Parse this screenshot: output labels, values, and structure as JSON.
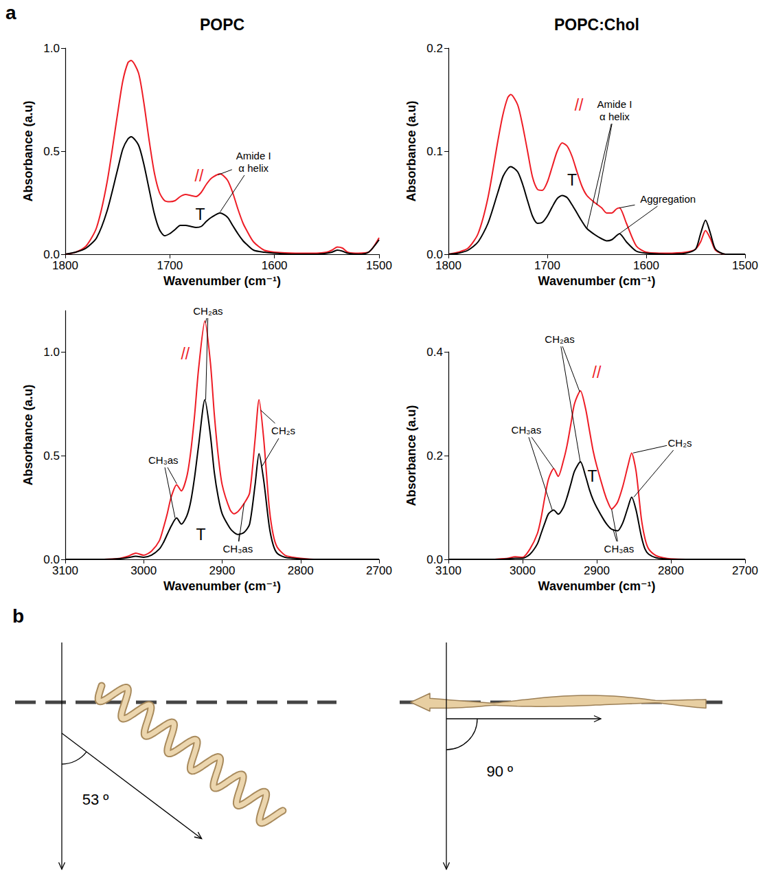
{
  "panel_a_letter": "a",
  "chart_data": [
    {
      "type": "line",
      "title": "POPC",
      "x_label": "Wavenumber (cm⁻¹)",
      "y_label": "Absorbance (a.u)",
      "x": [
        1800,
        1790,
        1780,
        1770,
        1760,
        1750,
        1745,
        1740,
        1737,
        1730,
        1725,
        1720,
        1715,
        1710,
        1705,
        1700,
        1695,
        1690,
        1685,
        1680,
        1675,
        1670,
        1665,
        1660,
        1652,
        1645,
        1640,
        1635,
        1630,
        1627,
        1620,
        1610,
        1600,
        1580,
        1560,
        1550,
        1545,
        1540,
        1535,
        1530,
        1520,
        1510,
        1500
      ],
      "series": [
        {
          "name": "//",
          "color": "#ee1c25",
          "label_at": [
            1672,
            0.38
          ],
          "values": [
            0,
            0.01,
            0.04,
            0.13,
            0.35,
            0.68,
            0.84,
            0.93,
            0.94,
            0.88,
            0.74,
            0.56,
            0.4,
            0.3,
            0.26,
            0.255,
            0.26,
            0.28,
            0.29,
            0.285,
            0.28,
            0.3,
            0.34,
            0.37,
            0.39,
            0.36,
            0.3,
            0.22,
            0.15,
            0.12,
            0.06,
            0.02,
            0.01,
            0.005,
            0.005,
            0.01,
            0.02,
            0.035,
            0.03,
            0.01,
            0.005,
            0.01,
            0.08
          ]
        },
        {
          "name": "T",
          "color": "#000000",
          "label_at": [
            1671,
            0.195
          ],
          "values": [
            0,
            0.01,
            0.03,
            0.08,
            0.21,
            0.41,
            0.51,
            0.56,
            0.57,
            0.53,
            0.44,
            0.32,
            0.2,
            0.12,
            0.09,
            0.1,
            0.12,
            0.14,
            0.14,
            0.135,
            0.13,
            0.135,
            0.16,
            0.18,
            0.2,
            0.18,
            0.14,
            0.1,
            0.065,
            0.05,
            0.02,
            0.01,
            0.005,
            0,
            0,
            0.005,
            0.01,
            0.02,
            0.015,
            0.005,
            0,
            0.01,
            0.07
          ]
        }
      ],
      "xlim": [
        1800,
        1500
      ],
      "xticks": [
        1800,
        1700,
        1600,
        1500
      ],
      "ylim": [
        0,
        1
      ],
      "yticks": [
        {
          "value": 0,
          "label": "0.0"
        },
        0.5,
        {
          "value": 1,
          "label": "1.0"
        }
      ],
      "annotations": [
        {
          "text": "Amide I\nα helix",
          "x": 1620,
          "y": 0.45,
          "targets": [
            [
              1654,
              0.385
            ],
            [
              1652,
              0.205
            ]
          ]
        }
      ]
    },
    {
      "type": "line",
      "title": "POPC:Chol",
      "x_label": "Wavenumber (cm⁻¹)",
      "y_label": "Absorbance (a.u)",
      "x": [
        1800,
        1790,
        1780,
        1770,
        1760,
        1750,
        1745,
        1740,
        1737,
        1730,
        1725,
        1720,
        1715,
        1710,
        1705,
        1700,
        1695,
        1690,
        1685,
        1680,
        1675,
        1670,
        1665,
        1660,
        1652,
        1645,
        1640,
        1635,
        1630,
        1627,
        1620,
        1610,
        1600,
        1580,
        1560,
        1550,
        1545,
        1540,
        1535,
        1530,
        1520,
        1510,
        1500
      ],
      "series": [
        {
          "name": "//",
          "color": "#ee1c25",
          "label_at": [
            1668,
            0.145
          ],
          "values": [
            0,
            0.002,
            0.006,
            0.02,
            0.055,
            0.11,
            0.135,
            0.152,
            0.155,
            0.145,
            0.125,
            0.1,
            0.075,
            0.063,
            0.062,
            0.07,
            0.085,
            0.1,
            0.108,
            0.105,
            0.095,
            0.08,
            0.066,
            0.057,
            0.05,
            0.045,
            0.04,
            0.04,
            0.044,
            0.045,
            0.03,
            0.008,
            0.002,
            0.001,
            0.002,
            0.005,
            0.012,
            0.023,
            0.015,
            0.004,
            0,
            0,
            0
          ]
        },
        {
          "name": "T",
          "color": "#000000",
          "label_at": [
            1675,
            0.072
          ],
          "values": [
            0,
            0.001,
            0.004,
            0.012,
            0.03,
            0.06,
            0.075,
            0.083,
            0.085,
            0.08,
            0.068,
            0.052,
            0.037,
            0.03,
            0.031,
            0.037,
            0.046,
            0.054,
            0.057,
            0.055,
            0.048,
            0.04,
            0.032,
            0.025,
            0.019,
            0.015,
            0.013,
            0.014,
            0.018,
            0.02,
            0.012,
            0.003,
            0.001,
            0,
            0.001,
            0.005,
            0.02,
            0.033,
            0.02,
            0.005,
            0,
            0,
            0
          ]
        }
      ],
      "xlim": [
        1800,
        1500
      ],
      "xticks": [
        1800,
        1700,
        1600,
        1500
      ],
      "ylim": [
        0,
        0.2
      ],
      "yticks": [
        {
          "value": 0,
          "label": "0.0"
        },
        0.1,
        0.2
      ],
      "annotations": [
        {
          "text": "Amide I\nα helix",
          "x": 1632,
          "y": 0.14,
          "targets": [
            [
              1650,
              0.048
            ],
            [
              1660,
              0.025
            ]
          ]
        },
        {
          "text": "Aggregation",
          "x": 1578,
          "y": 0.054,
          "targets": [
            [
              1627,
              0.045
            ],
            [
              1627,
              0.02
            ]
          ]
        }
      ]
    },
    {
      "type": "line",
      "x_label": "Wavenumber (cm⁻¹)",
      "y_label": "Absorbance (a.u)",
      "x": [
        3100,
        3080,
        3060,
        3040,
        3030,
        3020,
        3010,
        3000,
        2990,
        2980,
        2975,
        2970,
        2965,
        2958,
        2952,
        2945,
        2940,
        2935,
        2930,
        2922,
        2915,
        2910,
        2905,
        2900,
        2890,
        2885,
        2880,
        2872,
        2865,
        2858,
        2853,
        2847,
        2840,
        2835,
        2830,
        2820,
        2810,
        2800,
        2780,
        2760,
        2740,
        2720,
        2700
      ],
      "series": [
        {
          "name": "//",
          "color": "#ee1c25",
          "label_at": [
            2947,
            0.99
          ],
          "values": [
            0,
            0,
            0,
            0.002,
            0.005,
            0.015,
            0.03,
            0.02,
            0.04,
            0.09,
            0.15,
            0.22,
            0.3,
            0.36,
            0.33,
            0.4,
            0.52,
            0.7,
            0.92,
            1.15,
            0.95,
            0.7,
            0.5,
            0.36,
            0.24,
            0.22,
            0.23,
            0.27,
            0.32,
            0.58,
            0.77,
            0.58,
            0.25,
            0.12,
            0.06,
            0.02,
            0.01,
            0.005,
            0,
            0,
            0,
            0,
            0
          ]
        },
        {
          "name": "T",
          "color": "#000000",
          "label_at": [
            2927,
            0.12
          ],
          "values": [
            0,
            0,
            0,
            0.001,
            0.003,
            0.008,
            0.015,
            0.01,
            0.02,
            0.05,
            0.08,
            0.12,
            0.16,
            0.2,
            0.17,
            0.21,
            0.28,
            0.4,
            0.55,
            0.77,
            0.6,
            0.42,
            0.3,
            0.22,
            0.15,
            0.13,
            0.12,
            0.13,
            0.17,
            0.36,
            0.51,
            0.38,
            0.16,
            0.07,
            0.03,
            0.01,
            0.005,
            0.002,
            0,
            0,
            0,
            0,
            0
          ]
        }
      ],
      "xlim": [
        3100,
        2700
      ],
      "xticks": [
        3100,
        3000,
        2900,
        2800,
        2700
      ],
      "ylim": [
        0,
        1.2
      ],
      "yticks": [
        {
          "value": 0,
          "label": "0.0"
        },
        0.5,
        {
          "value": 1,
          "label": "1.0"
        }
      ],
      "annotations": [
        {
          "text": "CH₂as",
          "x": 2918,
          "y": 1.2,
          "targets": [
            [
              2921,
              1.14
            ],
            [
              2921,
              0.77
            ]
          ]
        },
        {
          "text": "CH₃as",
          "x": 2975,
          "y": 0.48,
          "targets": [
            [
              2958,
              0.365
            ],
            [
              2960,
              0.2
            ]
          ]
        },
        {
          "text": "CH₂s",
          "x": 2822,
          "y": 0.62,
          "targets": [
            [
              2851,
              0.72
            ],
            [
              2849,
              0.45
            ]
          ]
        },
        {
          "text": "CH₃as",
          "x": 2880,
          "y": 0.05,
          "targets": [
            [
              2872,
              0.27
            ],
            [
              2878,
              0.125
            ]
          ]
        }
      ]
    },
    {
      "type": "line",
      "x_label": "Wavenumber (cm⁻¹)",
      "y_label": "Absorbance (a.u)",
      "x": [
        3100,
        3080,
        3060,
        3040,
        3030,
        3020,
        3010,
        3000,
        2990,
        2980,
        2975,
        2970,
        2965,
        2958,
        2952,
        2945,
        2940,
        2935,
        2930,
        2922,
        2915,
        2910,
        2905,
        2900,
        2890,
        2885,
        2880,
        2872,
        2865,
        2858,
        2853,
        2847,
        2840,
        2835,
        2830,
        2820,
        2810,
        2800,
        2780,
        2760,
        2740,
        2720,
        2700
      ],
      "series": [
        {
          "name": "//",
          "color": "#ee1c25",
          "label_at": [
            2900,
            0.36
          ],
          "values": [
            0,
            0,
            0,
            0,
            0.001,
            0.002,
            0.005,
            0.004,
            0.02,
            0.05,
            0.08,
            0.12,
            0.155,
            0.175,
            0.16,
            0.19,
            0.22,
            0.26,
            0.3,
            0.325,
            0.29,
            0.25,
            0.21,
            0.18,
            0.13,
            0.11,
            0.097,
            0.11,
            0.14,
            0.18,
            0.205,
            0.17,
            0.08,
            0.04,
            0.02,
            0.007,
            0.003,
            0.001,
            0,
            0,
            0,
            0,
            0
          ]
        },
        {
          "name": "T",
          "color": "#000000",
          "label_at": [
            2906,
            0.16
          ],
          "values": [
            0,
            0,
            0,
            0,
            0,
            0.001,
            0.002,
            0.002,
            0.01,
            0.03,
            0.05,
            0.07,
            0.088,
            0.095,
            0.087,
            0.1,
            0.12,
            0.145,
            0.17,
            0.188,
            0.16,
            0.135,
            0.115,
            0.1,
            0.075,
            0.065,
            0.058,
            0.055,
            0.07,
            0.1,
            0.12,
            0.095,
            0.045,
            0.02,
            0.01,
            0.003,
            0.001,
            0,
            0,
            0,
            0,
            0,
            0
          ]
        }
      ],
      "xlim": [
        3100,
        2700
      ],
      "xticks": [
        3100,
        3000,
        2900,
        2800,
        2700
      ],
      "ylim": [
        0,
        0.4
      ],
      "yticks": [
        {
          "value": 0,
          "label": "0.0"
        },
        0.2,
        0.4
      ],
      "annotations": [
        {
          "text": "CH₂as",
          "x": 2950,
          "y": 0.425,
          "targets": [
            [
              2923,
              0.323
            ],
            [
              2922,
              0.186
            ]
          ]
        },
        {
          "text": "CH₃as",
          "x": 2995,
          "y": 0.25,
          "targets": [
            [
              2958,
              0.175
            ],
            [
              2960,
              0.095
            ]
          ]
        },
        {
          "text": "CH₂s",
          "x": 2788,
          "y": 0.225,
          "targets": [
            [
              2851,
              0.205
            ],
            [
              2850,
              0.12
            ]
          ]
        },
        {
          "text": "CH₃as",
          "x": 2870,
          "y": 0.02,
          "targets": [
            [
              2880,
              0.097
            ],
            [
              2878,
              0.058
            ]
          ]
        }
      ]
    }
  ],
  "panel_b": {
    "letter": "b",
    "orientations": [
      {
        "angle": {
          "value": 53,
          "label": "53 º"
        }
      },
      {
        "angle": {
          "value": 90,
          "label": "90 º"
        }
      }
    ]
  }
}
